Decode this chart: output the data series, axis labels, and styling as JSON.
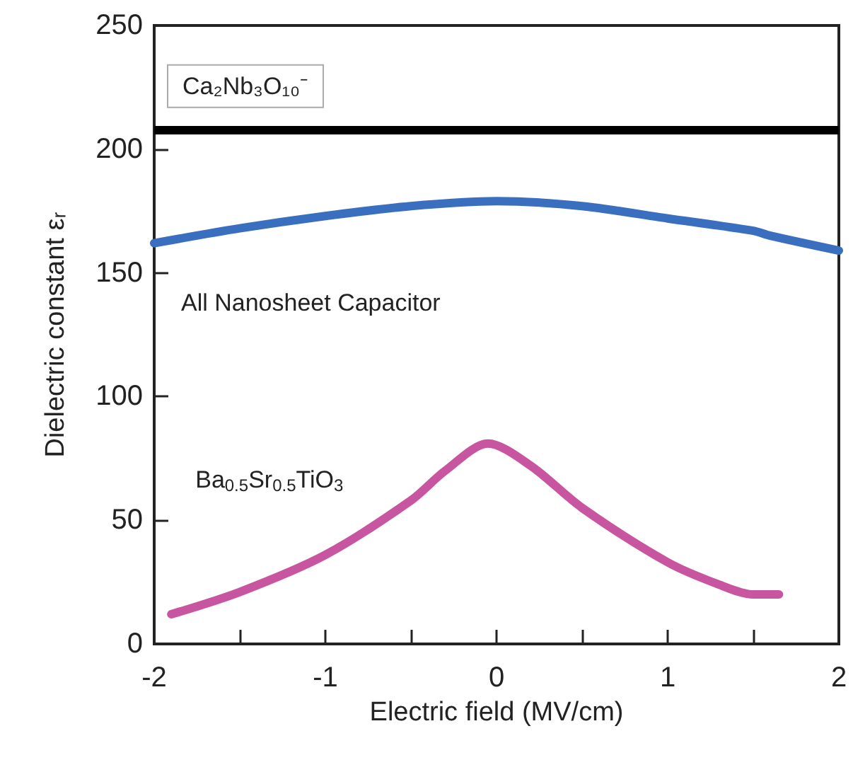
{
  "chart_data": {
    "type": "line",
    "xlabel": "Electric field (MV/cm)",
    "ylabel": "Dielectric constant εᵣ",
    "xlim": [
      -2,
      2
    ],
    "xticks": [
      -2,
      {
        "value": -1.5,
        "label": null
      },
      -1,
      {
        "value": -0.5,
        "label": null
      },
      0,
      {
        "value": 0.5,
        "label": null
      },
      1,
      {
        "value": 1.5,
        "label": null
      },
      2
    ],
    "ylim": [
      0,
      250
    ],
    "yticks": [
      0,
      50,
      100,
      150,
      200,
      250
    ],
    "series": [
      {
        "name": "All Nanosheet Capacitor",
        "color": "#3a6fbf",
        "x": [
          -2,
          -1.5,
          -1,
          -0.5,
          0,
          0.5,
          1,
          1.5,
          1.6,
          2
        ],
        "values": [
          162,
          168,
          173,
          177,
          179,
          177,
          172,
          167,
          165,
          159
        ]
      },
      {
        "name": "Ba$_{0.5}$Sr$_{0.5}$TiO$_{3}$",
        "color": "#c8559f",
        "x": [
          -1.9,
          -1.5,
          -1,
          -0.5,
          -0.3,
          -0.05,
          0.2,
          0.5,
          1,
          1.3,
          1.5,
          1.65
        ],
        "values": [
          12,
          21,
          36,
          58,
          70,
          81,
          72,
          55,
          33,
          24,
          20,
          20
        ]
      }
    ],
    "ref_lines": [
      {
        "axis": "y",
        "value": 208,
        "label": "Ca₂Nb₃O₁₀⁻",
        "color": "#000000"
      }
    ],
    "grid": false,
    "legend": false,
    "marker": "none",
    "line_style": "solid"
  }
}
